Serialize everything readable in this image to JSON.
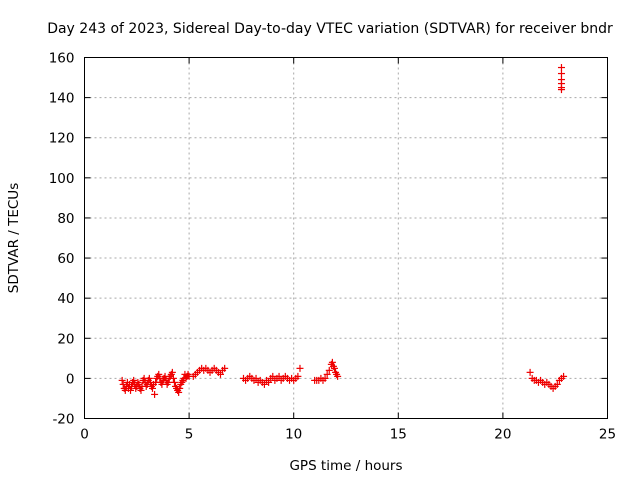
{
  "chart_data": {
    "type": "scatter",
    "title": "Day 243 of 2023, Sidereal Day-to-day VTEC variation (SDTVAR) for receiver bndr",
    "xlabel": "GPS time / hours",
    "ylabel": "SDTVAR / TECUs",
    "xlim": [
      0,
      25
    ],
    "ylim": [
      -20,
      160
    ],
    "xticks": [
      "0",
      "5",
      "10",
      "15",
      "20",
      "25"
    ],
    "yticks": [
      "-20",
      "0",
      "20",
      "40",
      "60",
      "80",
      "100",
      "120",
      "140",
      "160"
    ],
    "xtick_values": [
      0,
      5,
      10,
      15,
      20,
      25
    ],
    "ytick_values": [
      -20,
      0,
      20,
      40,
      60,
      80,
      100,
      120,
      140,
      160
    ],
    "grid": true,
    "marker": "+",
    "color": "#ee0000",
    "series": [
      {
        "points": [
          [
            1.8,
            -1
          ],
          [
            1.85,
            -3
          ],
          [
            1.9,
            -5
          ],
          [
            1.95,
            -6
          ],
          [
            2.0,
            -4
          ],
          [
            2.05,
            -2
          ],
          [
            2.1,
            -5
          ],
          [
            2.15,
            -3
          ],
          [
            2.2,
            -6
          ],
          [
            2.25,
            -4
          ],
          [
            2.3,
            -2
          ],
          [
            2.35,
            -1
          ],
          [
            2.4,
            -3
          ],
          [
            2.45,
            -5
          ],
          [
            2.5,
            -4
          ],
          [
            2.55,
            -2
          ],
          [
            2.6,
            -3
          ],
          [
            2.65,
            -5
          ],
          [
            2.7,
            -6
          ],
          [
            2.75,
            -4
          ],
          [
            2.8,
            -1
          ],
          [
            2.85,
            0
          ],
          [
            2.9,
            -2
          ],
          [
            2.95,
            -4
          ],
          [
            3.0,
            -3
          ],
          [
            3.05,
            -1
          ],
          [
            3.1,
            0
          ],
          [
            3.15,
            -2
          ],
          [
            3.2,
            -4
          ],
          [
            3.25,
            -5
          ],
          [
            3.3,
            -3
          ],
          [
            3.35,
            -8
          ],
          [
            3.4,
            -2
          ],
          [
            3.45,
            0
          ],
          [
            3.5,
            1
          ],
          [
            3.55,
            2
          ],
          [
            3.6,
            0
          ],
          [
            3.65,
            -2
          ],
          [
            3.7,
            -3
          ],
          [
            3.75,
            -1
          ],
          [
            3.8,
            0
          ],
          [
            3.85,
            1
          ],
          [
            3.9,
            -1
          ],
          [
            3.95,
            -3
          ],
          [
            4.0,
            -2
          ],
          [
            4.05,
            0
          ],
          [
            4.1,
            1
          ],
          [
            4.15,
            2
          ],
          [
            4.2,
            3
          ],
          [
            4.25,
            0
          ],
          [
            4.3,
            -2
          ],
          [
            4.35,
            -4
          ],
          [
            4.4,
            -5
          ],
          [
            4.45,
            -6
          ],
          [
            4.5,
            -7
          ],
          [
            4.55,
            -5
          ],
          [
            4.6,
            -3
          ],
          [
            4.65,
            -2
          ],
          [
            4.7,
            -1
          ],
          [
            4.75,
            0
          ],
          [
            4.8,
            2
          ],
          [
            4.85,
            0
          ],
          [
            4.9,
            1
          ],
          [
            4.95,
            2
          ],
          [
            5.0,
            1
          ],
          [
            5.2,
            1
          ],
          [
            5.3,
            2
          ],
          [
            5.4,
            3
          ],
          [
            5.5,
            4
          ],
          [
            5.6,
            5
          ],
          [
            5.7,
            4
          ],
          [
            5.8,
            5
          ],
          [
            5.9,
            4
          ],
          [
            6.0,
            3
          ],
          [
            6.1,
            4
          ],
          [
            6.2,
            5
          ],
          [
            6.3,
            4
          ],
          [
            6.4,
            3
          ],
          [
            6.5,
            2
          ],
          [
            6.6,
            4
          ],
          [
            6.7,
            5
          ],
          [
            7.6,
            0
          ],
          [
            7.7,
            -1
          ],
          [
            7.8,
            0
          ],
          [
            7.9,
            1
          ],
          [
            8.0,
            0
          ],
          [
            8.1,
            -1
          ],
          [
            8.2,
            0
          ],
          [
            8.3,
            -2
          ],
          [
            8.4,
            -1
          ],
          [
            8.5,
            -2
          ],
          [
            8.6,
            -3
          ],
          [
            8.7,
            -1
          ],
          [
            8.8,
            -2
          ],
          [
            8.9,
            0
          ],
          [
            9.0,
            1
          ],
          [
            9.1,
            -1
          ],
          [
            9.2,
            0
          ],
          [
            9.3,
            1
          ],
          [
            9.4,
            -1
          ],
          [
            9.5,
            0
          ],
          [
            9.6,
            1
          ],
          [
            9.7,
            0
          ],
          [
            9.8,
            -1
          ],
          [
            9.9,
            0
          ],
          [
            10.0,
            -1
          ],
          [
            10.1,
            0
          ],
          [
            10.2,
            1
          ],
          [
            10.3,
            5
          ],
          [
            11.0,
            -1
          ],
          [
            11.1,
            -1
          ],
          [
            11.2,
            -1
          ],
          [
            11.3,
            0
          ],
          [
            11.4,
            -1
          ],
          [
            11.5,
            0
          ],
          [
            11.6,
            2
          ],
          [
            11.7,
            4
          ],
          [
            11.8,
            7
          ],
          [
            11.85,
            8
          ],
          [
            11.9,
            6
          ],
          [
            11.95,
            5
          ],
          [
            12.0,
            3
          ],
          [
            12.05,
            2
          ],
          [
            12.1,
            1
          ],
          [
            21.3,
            3
          ],
          [
            21.4,
            0
          ],
          [
            21.5,
            -1
          ],
          [
            21.6,
            -1
          ],
          [
            21.7,
            -2
          ],
          [
            21.8,
            -1
          ],
          [
            21.9,
            -2
          ],
          [
            22.0,
            -3
          ],
          [
            22.1,
            -2
          ],
          [
            22.2,
            -3
          ],
          [
            22.3,
            -4
          ],
          [
            22.4,
            -5
          ],
          [
            22.5,
            -4
          ],
          [
            22.6,
            -3
          ],
          [
            22.7,
            -1
          ],
          [
            22.8,
            0
          ],
          [
            22.9,
            1
          ],
          [
            22.8,
            155
          ],
          [
            22.8,
            152
          ],
          [
            22.8,
            149
          ],
          [
            22.8,
            147
          ],
          [
            22.8,
            145
          ],
          [
            22.8,
            144
          ]
        ]
      }
    ]
  }
}
